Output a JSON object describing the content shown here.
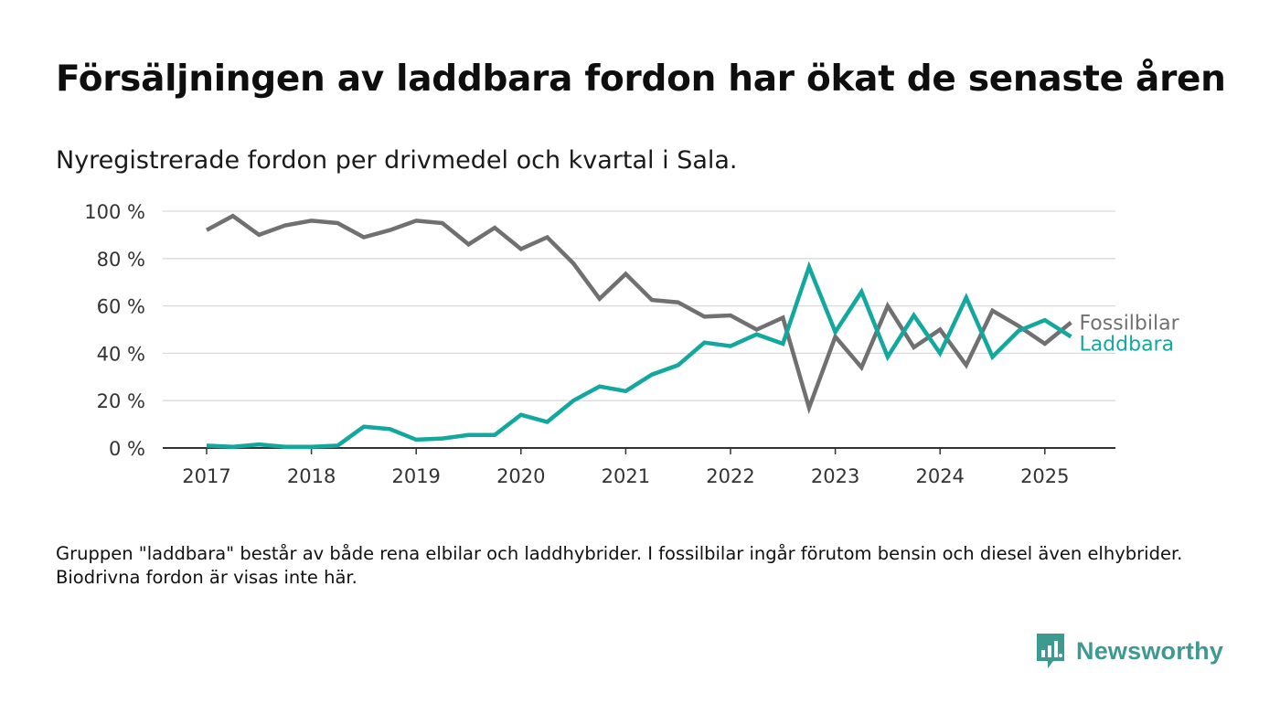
{
  "header": {
    "title": "Försäljningen av laddbara fordon har ökat de senaste åren",
    "subtitle": "Nyregistrerade fordon per drivmedel och kvartal i Sala."
  },
  "footer": {
    "note": "Gruppen \"laddbara\" består av både rena elbilar och laddhybrider. I fossilbilar ingår förutom bensin och diesel även elhybrider. Biodrivna fordon är visas inte här.",
    "brand": "Newsworthy",
    "brand_icon": "bar-chart-speech-bubble-icon"
  },
  "colors": {
    "fossil": "#707070",
    "laddbara": "#13a89e",
    "grid": "#d9d9d9",
    "axis": "#333333",
    "brand": "#3d9a91"
  },
  "chart_data": {
    "type": "line",
    "x_unit": "quarter",
    "x_ticks": [
      "2017",
      "2018",
      "2019",
      "2020",
      "2021",
      "2022",
      "2023",
      "2024",
      "2025"
    ],
    "y_ticks": [
      "0 %",
      "20 %",
      "40 %",
      "60 %",
      "80 %",
      "100 %"
    ],
    "ylim": [
      0,
      100
    ],
    "grid": true,
    "legend": "direct labels at line ends",
    "x": [
      "2017 Q1",
      "2017 Q2",
      "2017 Q3",
      "2017 Q4",
      "2018 Q1",
      "2018 Q2",
      "2018 Q3",
      "2018 Q4",
      "2019 Q1",
      "2019 Q2",
      "2019 Q3",
      "2019 Q4",
      "2020 Q1",
      "2020 Q2",
      "2020 Q3",
      "2020 Q4",
      "2021 Q1",
      "2021 Q2",
      "2021 Q3",
      "2021 Q4",
      "2022 Q1",
      "2022 Q2",
      "2022 Q3",
      "2022 Q4",
      "2023 Q1",
      "2023 Q2",
      "2023 Q3",
      "2023 Q4",
      "2024 Q1",
      "2024 Q2",
      "2024 Q3",
      "2024 Q4",
      "2025 Q1",
      "2025 Q2"
    ],
    "series": [
      {
        "name": "Fossilbilar",
        "color_key": "fossil",
        "values": [
          92,
          98,
          90,
          94,
          96,
          95,
          89,
          92,
          96,
          95,
          86,
          93,
          84,
          89,
          78,
          63,
          73.5,
          62.5,
          61.5,
          55.5,
          56,
          50,
          55,
          17,
          47,
          34,
          60,
          42.5,
          50,
          35,
          58,
          51.5,
          44,
          53
        ]
      },
      {
        "name": "Laddbara",
        "color_key": "laddbara",
        "values": [
          1,
          0.5,
          1.5,
          0.5,
          0.5,
          1,
          9,
          8,
          3.5,
          4,
          5.5,
          5.5,
          14,
          11,
          20,
          26,
          24,
          31,
          35,
          44.5,
          43,
          48,
          44,
          76.5,
          49,
          66,
          38.5,
          56,
          40,
          63.5,
          38.5,
          49.5,
          54,
          47
        ]
      }
    ]
  }
}
